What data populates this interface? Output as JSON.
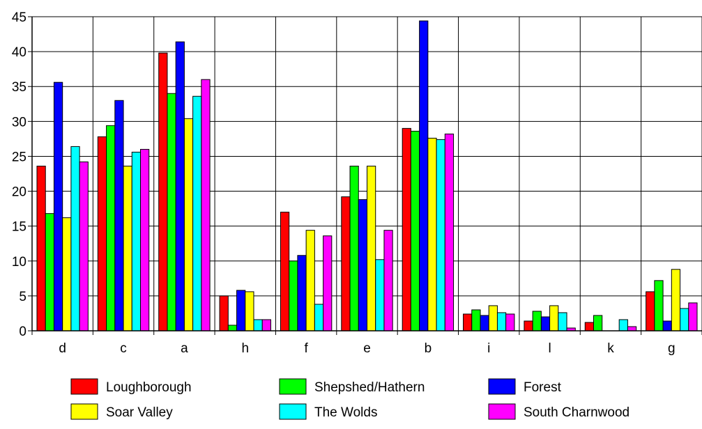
{
  "chart_data": {
    "type": "bar",
    "categories": [
      "d",
      "c",
      "a",
      "h",
      "f",
      "e",
      "b",
      "i",
      "l",
      "k",
      "g"
    ],
    "series": [
      {
        "name": "Loughborough",
        "color": "#ff0000",
        "values": [
          23.6,
          27.8,
          39.8,
          5.0,
          17.0,
          19.2,
          29.0,
          2.4,
          1.4,
          1.2,
          5.6
        ]
      },
      {
        "name": "Shepshed/Hathern",
        "color": "#00ff00",
        "values": [
          16.8,
          29.4,
          34.0,
          0.8,
          10.0,
          23.6,
          28.6,
          3.0,
          2.8,
          2.2,
          7.2
        ]
      },
      {
        "name": "Forest",
        "color": "#0000ff",
        "values": [
          35.6,
          33.0,
          41.4,
          5.8,
          10.8,
          18.8,
          44.4,
          2.2,
          2.0,
          0,
          1.4
        ]
      },
      {
        "name": "Soar Valley",
        "color": "#ffff00",
        "values": [
          16.2,
          23.6,
          30.4,
          5.6,
          14.4,
          23.6,
          27.6,
          3.6,
          3.6,
          0,
          8.8
        ]
      },
      {
        "name": "The Wolds",
        "color": "#00ffff",
        "values": [
          26.4,
          25.6,
          33.6,
          1.6,
          3.8,
          10.2,
          27.4,
          2.6,
          2.6,
          1.6,
          3.2
        ]
      },
      {
        "name": "South Charnwood",
        "color": "#ff00ff",
        "values": [
          24.2,
          26.0,
          36.0,
          1.6,
          13.6,
          14.4,
          28.2,
          2.4,
          0.4,
          0.6,
          4.0
        ]
      }
    ],
    "y_ticks": [
      "0",
      "5",
      "10",
      "15",
      "20",
      "25",
      "30",
      "35",
      "40",
      "45"
    ],
    "ylim": [
      0,
      45
    ],
    "grid": true,
    "legend": "bottom"
  }
}
